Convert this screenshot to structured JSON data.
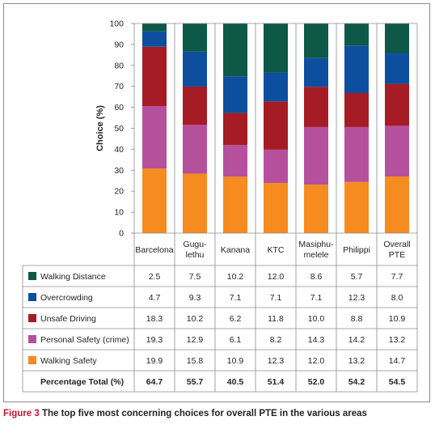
{
  "chart_data": {
    "type": "bar",
    "stacked": true,
    "ylabel": "Choice (%)",
    "ylim": [
      0,
      100
    ],
    "yticks": [
      0,
      10,
      20,
      30,
      40,
      50,
      60,
      70,
      80,
      90,
      100
    ],
    "grid": false,
    "categories": [
      [
        "Barcelona"
      ],
      [
        "Gugu-",
        "lethu"
      ],
      [
        "Kanana"
      ],
      [
        "KTC"
      ],
      [
        "Masiphu-",
        "melele"
      ],
      [
        "Philippi"
      ],
      [
        "Overall",
        "PTE"
      ]
    ],
    "series": [
      {
        "name": "Walking Safety",
        "color": "#f68b1f",
        "values": [
          30.8,
          28.4,
          26.9,
          23.9,
          23.1,
          24.4,
          27.0
        ],
        "table": [
          "19.9",
          "15.8",
          "10.9",
          "12.3",
          "12.0",
          "13.2",
          "14.7"
        ]
      },
      {
        "name": "Personal Safety (crime)",
        "color": "#b5519c",
        "values": [
          29.8,
          23.2,
          15.1,
          15.9,
          27.5,
          26.2,
          24.2
        ],
        "table": [
          "19.3",
          "12.9",
          "6.1",
          "8.2",
          "14.3",
          "14.2",
          "13.2"
        ]
      },
      {
        "name": "Unsafe Driving",
        "color": "#a51c24",
        "values": [
          28.3,
          18.3,
          15.3,
          23.0,
          19.2,
          16.2,
          20.0
        ],
        "table": [
          "18.3",
          "10.2",
          "6.2",
          "11.8",
          "10.0",
          "8.8",
          "10.9"
        ]
      },
      {
        "name": "Overcrowding",
        "color": "#0d4f9e",
        "values": [
          7.3,
          16.7,
          17.5,
          13.8,
          13.7,
          22.7,
          14.7
        ],
        "table": [
          "4.7",
          "9.3",
          "7.1",
          "7.1",
          "7.1",
          "12.3",
          "8.0"
        ]
      },
      {
        "name": "Walking Distance",
        "color": "#0e5847",
        "values": [
          3.8,
          13.4,
          25.2,
          23.4,
          16.5,
          10.5,
          14.1
        ],
        "table": [
          "2.5",
          "7.5",
          "10.2",
          "12.0",
          "8.6",
          "5.7",
          "7.7"
        ]
      }
    ],
    "total_row": {
      "label": "Percentage Total (%)",
      "values": [
        "64.7",
        "55.7",
        "40.5",
        "51.4",
        "52.0",
        "54.2",
        "54.5"
      ]
    }
  },
  "caption": {
    "figure": "Figure 3",
    "text": "The top five most concerning choices for overall PTE in the various areas"
  }
}
